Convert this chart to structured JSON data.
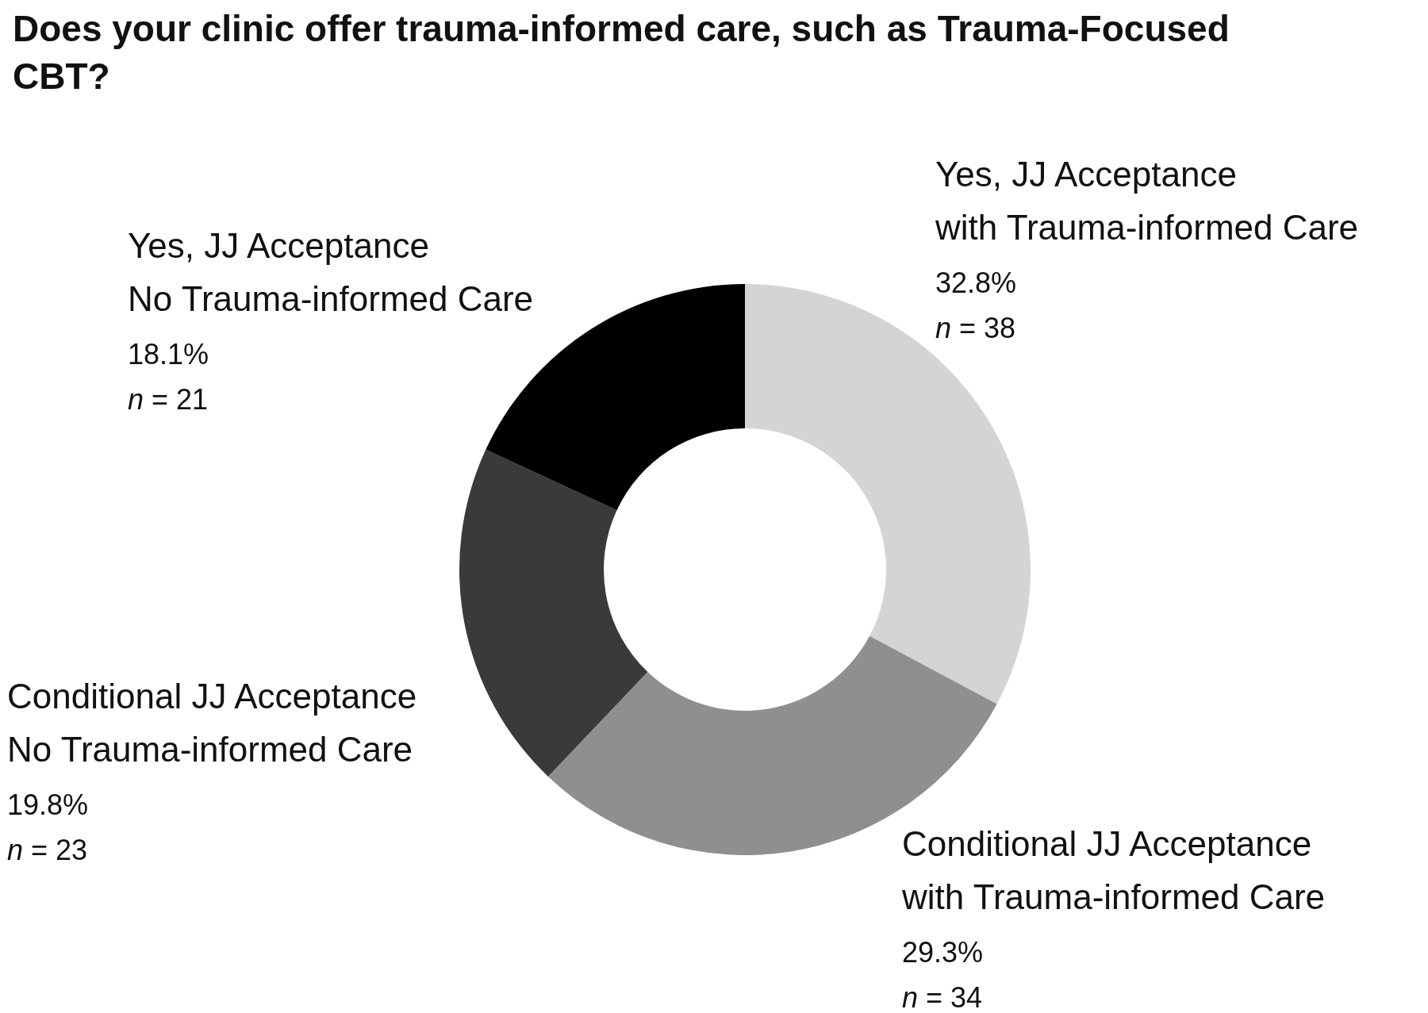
{
  "chart_data": {
    "type": "donut",
    "title": "Does your clinic offer trauma-informed care, such as Trauma-Focused CBT?",
    "categories": [
      "Yes, JJ Acceptance\nwith Trauma-informed Care",
      "Conditional JJ Acceptance\nwith Trauma-informed Care",
      "Conditional JJ Acceptance\nNo Trauma-informed Care",
      "Yes, JJ Acceptance\nNo Trauma-informed Care"
    ],
    "values": [
      32.8,
      29.3,
      19.8,
      18.1
    ],
    "colors": [
      "#d4d4d4",
      "#8f8f8f",
      "#3a3a3a",
      "#000000"
    ],
    "value_labels": [
      "32.8%",
      "29.3%",
      "19.8%",
      "18.1%"
    ],
    "annotations": [
      "n = 38",
      "n = 34",
      "n = 23",
      "n = 21"
    ],
    "legend": false
  }
}
